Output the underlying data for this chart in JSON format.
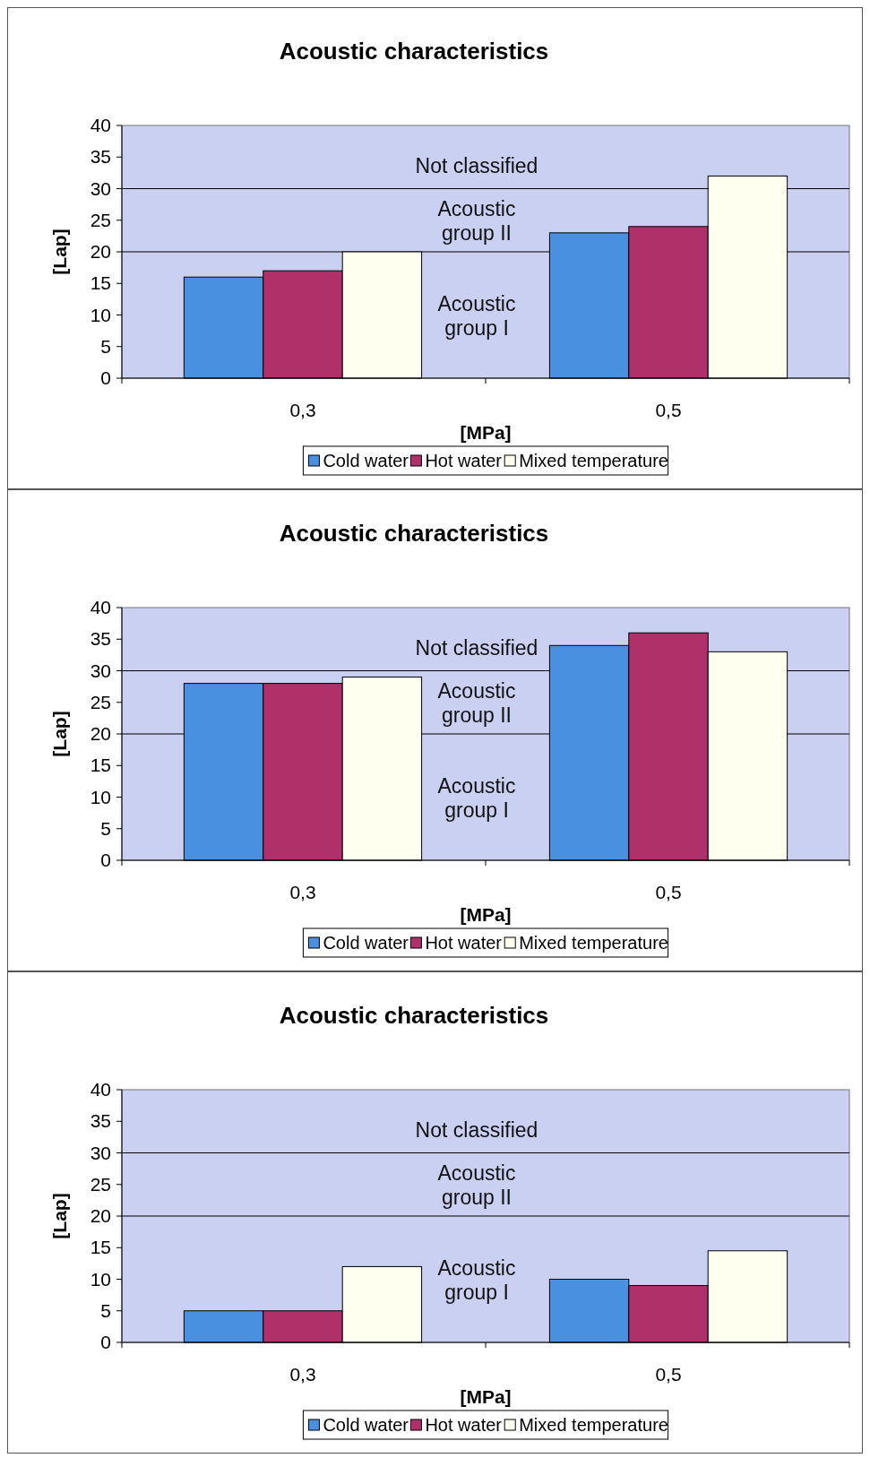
{
  "chart_data": [
    {
      "type": "bar",
      "title": "Acoustic characteristics",
      "xlabel": "[MPa]",
      "ylabel": "[Lap]",
      "categories": [
        "0,3",
        "0,5"
      ],
      "ylim": [
        0,
        40
      ],
      "yticks": [
        0,
        5,
        10,
        15,
        20,
        25,
        30,
        35,
        40
      ],
      "grid": false,
      "legend": "bottom",
      "series": [
        {
          "name": "Cold water",
          "color": "#4a90e0",
          "values": [
            16,
            23
          ]
        },
        {
          "name": "Hot water",
          "color": "#b0306a",
          "values": [
            17,
            24
          ]
        },
        {
          "name": "Mixed temperature",
          "color": "#fffff0",
          "values": [
            20,
            32
          ]
        }
      ],
      "ref_lines": [
        {
          "axis": "y",
          "value": 20
        },
        {
          "axis": "y",
          "value": 30
        }
      ],
      "annotations": [
        "Acoustic group I",
        "Acoustic group II",
        "Not classified"
      ]
    },
    {
      "type": "bar",
      "title": "Acoustic characteristics",
      "xlabel": "[MPa]",
      "ylabel": "[Lap]",
      "categories": [
        "0,3",
        "0,5"
      ],
      "ylim": [
        0,
        40
      ],
      "yticks": [
        0,
        5,
        10,
        15,
        20,
        25,
        30,
        35,
        40
      ],
      "grid": false,
      "legend": "bottom",
      "series": [
        {
          "name": "Cold water",
          "color": "#4a90e0",
          "values": [
            28,
            34
          ]
        },
        {
          "name": "Hot water",
          "color": "#b0306a",
          "values": [
            28,
            36
          ]
        },
        {
          "name": "Mixed temperature",
          "color": "#fffff0",
          "values": [
            29,
            33
          ]
        }
      ],
      "ref_lines": [
        {
          "axis": "y",
          "value": 20
        },
        {
          "axis": "y",
          "value": 30
        }
      ],
      "annotations": [
        "Acoustic group I",
        "Acoustic group II",
        "Not classified"
      ]
    },
    {
      "type": "bar",
      "title": "Acoustic characteristics",
      "xlabel": "[MPa]",
      "ylabel": "[Lap]",
      "categories": [
        "0,3",
        "0,5"
      ],
      "ylim": [
        0,
        40
      ],
      "yticks": [
        0,
        5,
        10,
        15,
        20,
        25,
        30,
        35,
        40
      ],
      "grid": false,
      "legend": "bottom",
      "series": [
        {
          "name": "Cold water",
          "color": "#4a90e0",
          "values": [
            5,
            10
          ]
        },
        {
          "name": "Hot water",
          "color": "#b0306a",
          "values": [
            5,
            9
          ]
        },
        {
          "name": "Mixed temperature",
          "color": "#fffff0",
          "values": [
            12,
            14.5
          ]
        }
      ],
      "ref_lines": [
        {
          "axis": "y",
          "value": 20
        },
        {
          "axis": "y",
          "value": 30
        }
      ],
      "annotations": [
        "Acoustic group I",
        "Acoustic group II",
        "Not classified"
      ]
    }
  ]
}
